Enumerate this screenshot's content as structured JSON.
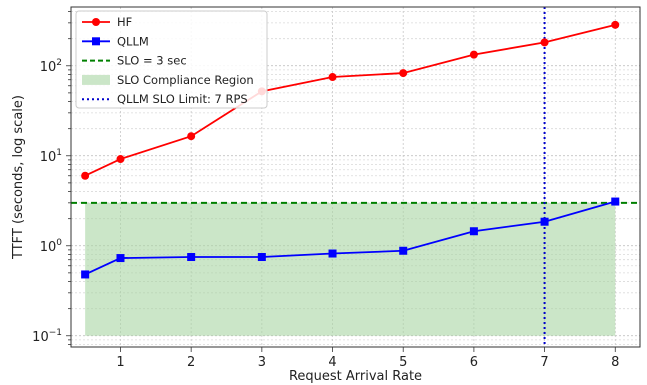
{
  "chart_data": {
    "type": "line",
    "xlabel": "Request Arrival Rate",
    "ylabel": "TTFT (seconds, log scale)",
    "yscale": "log",
    "xlim": [
      0.3,
      8.35
    ],
    "ylim": [
      0.075,
      450
    ],
    "x_ticks": [
      1,
      2,
      3,
      4,
      5,
      6,
      7,
      8
    ],
    "y_ticks": [
      {
        "value": 0.1,
        "base": "10",
        "exp": "−1"
      },
      {
        "value": 1,
        "base": "10",
        "exp": "0"
      },
      {
        "value": 10,
        "base": "10",
        "exp": "1"
      },
      {
        "value": 100,
        "base": "10",
        "exp": "2"
      }
    ],
    "grid": true,
    "legend_position": "upper-left",
    "series": [
      {
        "name": "HF",
        "color": "#ff0000",
        "marker": "circle",
        "x": [
          0.5,
          1,
          2,
          3,
          4,
          5,
          6,
          7,
          8
        ],
        "y": [
          6,
          9.2,
          16.5,
          52,
          75,
          83,
          133,
          182,
          285
        ]
      },
      {
        "name": "QLLM",
        "color": "#0000ff",
        "marker": "square",
        "x": [
          0.5,
          1,
          2,
          3,
          4,
          5,
          6,
          7,
          8
        ],
        "y": [
          0.48,
          0.73,
          0.75,
          0.75,
          0.82,
          0.88,
          1.45,
          1.85,
          3.1
        ]
      }
    ],
    "slo_line": {
      "name": "SLO = 3 sec",
      "y": 3,
      "color": "#008000"
    },
    "slo_region": {
      "name": "SLO Compliance Region",
      "x": [
        0.5,
        8
      ],
      "y": [
        0.1,
        3
      ],
      "color": "#a8d5a3"
    },
    "limit_line": {
      "name": "QLLM SLO Limit: 7 RPS",
      "x": 7,
      "color": "#0000cc"
    }
  }
}
